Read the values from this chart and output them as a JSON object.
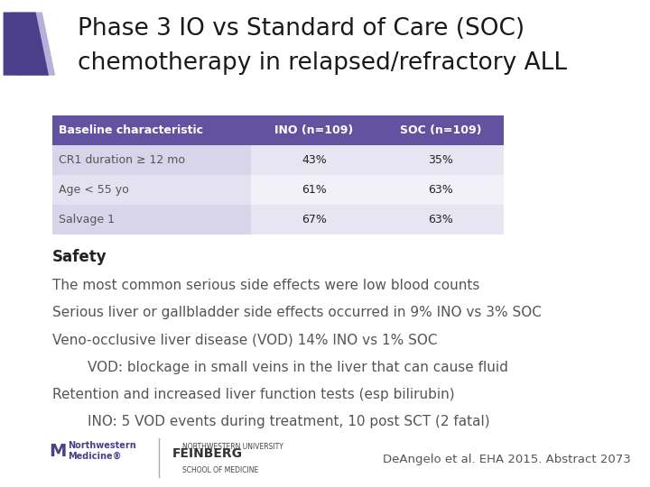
{
  "title_line1": "Phase 3 IO vs Standard of Care (SOC)",
  "title_line2": "chemotherapy in relapsed/refractory ALL",
  "title_fontsize": 19,
  "title_color": "#1a1a1a",
  "bg_color": "#ffffff",
  "table_header_bg": "#6153a0",
  "table_header_fg": "#ffffff",
  "table_row_bg_alt": "#e8e5f2",
  "table_row_bg_white": "#f2f0f8",
  "table_col1_alt_bg": "#d8d5ea",
  "table_col1_white_bg": "#e4e2f0",
  "table_headers": [
    "Baseline characteristic",
    "INO (n=109)",
    "SOC (n=109)"
  ],
  "table_rows": [
    [
      "CR1 duration ≥ 12 mo",
      "43%",
      "35%"
    ],
    [
      "Age < 55 yo",
      "61%",
      "63%"
    ],
    [
      "Salvage 1",
      "67%",
      "63%"
    ]
  ],
  "safety_bold": "Safety",
  "body_lines": [
    {
      "indent": 0,
      "text": "The most common serious side effects were low blood counts"
    },
    {
      "indent": 0,
      "text": "Serious liver or gallbladder side effects occurred in 9% INO vs 3% SOC"
    },
    {
      "indent": 0,
      "text": "Veno-occlusive liver disease (VOD) 14% INO vs 1% SOC"
    },
    {
      "indent": 1,
      "text": "VOD: blockage in small veins in the liver that can cause fluid"
    },
    {
      "indent": 0,
      "text": "Retention and increased liver function tests (esp bilirubin)"
    },
    {
      "indent": 1,
      "text": "INO: 5 VOD events during treatment, 10 post SCT (2 fatal)"
    }
  ],
  "body_fontsize": 11,
  "safety_fontsize": 12,
  "footer_text": "DeAngelo et al. EHA 2015. Abstract 2073",
  "footer_fontsize": 9.5,
  "chevron_dark": "#4b3f8a",
  "chevron_light": "#b8b0d8",
  "nw_color": "#4b3f8a",
  "text_gray": "#555555",
  "text_dark": "#222222"
}
